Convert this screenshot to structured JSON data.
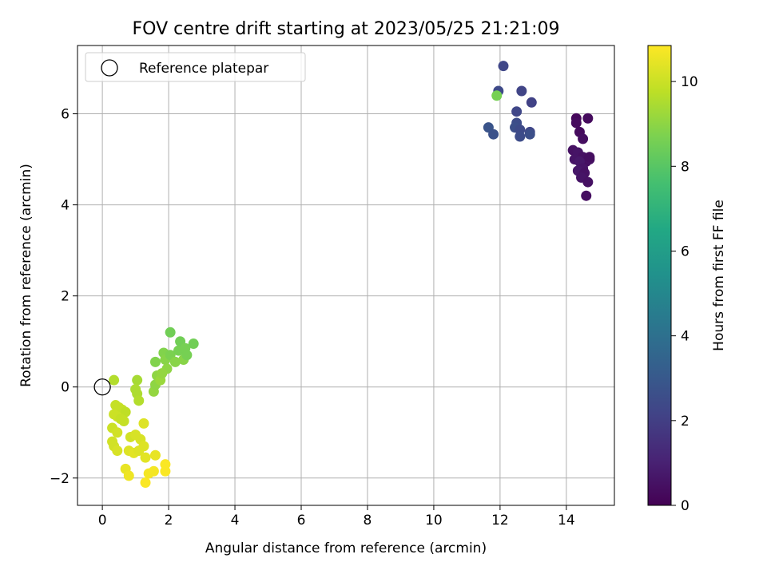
{
  "chart_data": {
    "type": "scatter",
    "title": "FOV centre drift starting at 2023/05/25 21:21:09",
    "xlabel": "Angular distance from reference (arcmin)",
    "ylabel": "Rotation from reference (arcmin)",
    "xlim": [
      -0.75,
      15.45
    ],
    "ylim": [
      -2.6,
      7.5
    ],
    "xticks": [
      0,
      2,
      4,
      6,
      8,
      10,
      12,
      14
    ],
    "yticks": [
      -2,
      0,
      2,
      4,
      6
    ],
    "xtick_labels": [
      "0",
      "2",
      "4",
      "6",
      "8",
      "10",
      "12",
      "14"
    ],
    "ytick_labels": [
      "−2",
      "0",
      "2",
      "4",
      "6"
    ],
    "grid": true,
    "legend": {
      "placement": "top-left",
      "entries": [
        "Reference platepar"
      ]
    },
    "reference_point": {
      "x": 0,
      "y": 0,
      "label": "Reference platepar"
    },
    "colorbar": {
      "label": "Hours from first FF file",
      "colormap": "viridis",
      "range": [
        0,
        10.85
      ],
      "ticks": [
        0,
        2,
        4,
        6,
        8,
        10
      ],
      "tick_labels": [
        "0",
        "2",
        "4",
        "6",
        "8",
        "10"
      ]
    },
    "points": [
      {
        "x": 14.3,
        "y": 5.9,
        "c": 0.2
      },
      {
        "x": 14.4,
        "y": 5.6,
        "c": 0.3
      },
      {
        "x": 14.5,
        "y": 5.45,
        "c": 0.4
      },
      {
        "x": 14.65,
        "y": 5.9,
        "c": 0.3
      },
      {
        "x": 14.2,
        "y": 5.2,
        "c": 0.5
      },
      {
        "x": 14.35,
        "y": 5.15,
        "c": 0.6
      },
      {
        "x": 14.5,
        "y": 5.05,
        "c": 0.5
      },
      {
        "x": 14.6,
        "y": 4.95,
        "c": 0.4
      },
      {
        "x": 14.25,
        "y": 5.0,
        "c": 0.6
      },
      {
        "x": 14.4,
        "y": 4.95,
        "c": 0.7
      },
      {
        "x": 14.7,
        "y": 5.0,
        "c": 0.5
      },
      {
        "x": 14.5,
        "y": 4.8,
        "c": 0.6
      },
      {
        "x": 14.35,
        "y": 4.75,
        "c": 0.7
      },
      {
        "x": 14.55,
        "y": 4.7,
        "c": 0.5
      },
      {
        "x": 14.45,
        "y": 4.6,
        "c": 0.6
      },
      {
        "x": 14.65,
        "y": 4.5,
        "c": 0.5
      },
      {
        "x": 14.6,
        "y": 4.2,
        "c": 0.4
      },
      {
        "x": 14.7,
        "y": 5.05,
        "c": 0.4
      },
      {
        "x": 14.3,
        "y": 5.8,
        "c": 0.3
      },
      {
        "x": 12.1,
        "y": 7.05,
        "c": 2.3
      },
      {
        "x": 11.95,
        "y": 6.5,
        "c": 2.4
      },
      {
        "x": 12.65,
        "y": 6.5,
        "c": 2.2
      },
      {
        "x": 12.95,
        "y": 6.25,
        "c": 2.1
      },
      {
        "x": 12.5,
        "y": 6.05,
        "c": 2.3
      },
      {
        "x": 12.5,
        "y": 5.8,
        "c": 2.5
      },
      {
        "x": 12.45,
        "y": 5.7,
        "c": 2.6
      },
      {
        "x": 12.6,
        "y": 5.65,
        "c": 2.4
      },
      {
        "x": 12.9,
        "y": 5.6,
        "c": 2.3
      },
      {
        "x": 11.65,
        "y": 5.7,
        "c": 2.8
      },
      {
        "x": 11.8,
        "y": 5.55,
        "c": 2.7
      },
      {
        "x": 12.6,
        "y": 5.5,
        "c": 2.5
      },
      {
        "x": 12.9,
        "y": 5.55,
        "c": 2.6
      },
      {
        "x": 11.9,
        "y": 6.4,
        "c": 8.6
      },
      {
        "x": 0.35,
        "y": 0.15,
        "c": 9.6
      },
      {
        "x": 1.05,
        "y": 0.15,
        "c": 9.4
      },
      {
        "x": 1.0,
        "y": -0.05,
        "c": 9.5
      },
      {
        "x": 1.05,
        "y": -0.15,
        "c": 9.5
      },
      {
        "x": 1.1,
        "y": -0.3,
        "c": 9.6
      },
      {
        "x": 1.55,
        "y": -0.1,
        "c": 9.1
      },
      {
        "x": 1.6,
        "y": 0.05,
        "c": 9.0
      },
      {
        "x": 1.65,
        "y": 0.25,
        "c": 9.0
      },
      {
        "x": 1.75,
        "y": 0.15,
        "c": 9.2
      },
      {
        "x": 1.6,
        "y": 0.55,
        "c": 8.8
      },
      {
        "x": 1.85,
        "y": 0.75,
        "c": 8.8
      },
      {
        "x": 1.9,
        "y": 0.6,
        "c": 8.9
      },
      {
        "x": 2.05,
        "y": 0.7,
        "c": 8.7
      },
      {
        "x": 2.2,
        "y": 0.55,
        "c": 8.9
      },
      {
        "x": 2.3,
        "y": 0.8,
        "c": 8.6
      },
      {
        "x": 2.35,
        "y": 1.0,
        "c": 8.5
      },
      {
        "x": 2.5,
        "y": 0.85,
        "c": 8.6
      },
      {
        "x": 2.45,
        "y": 0.6,
        "c": 8.9
      },
      {
        "x": 2.55,
        "y": 0.7,
        "c": 8.6
      },
      {
        "x": 2.75,
        "y": 0.95,
        "c": 8.5
      },
      {
        "x": 2.05,
        "y": 1.2,
        "c": 8.5
      },
      {
        "x": 1.95,
        "y": 0.4,
        "c": 9.0
      },
      {
        "x": 1.8,
        "y": 0.3,
        "c": 9.1
      },
      {
        "x": 0.4,
        "y": -0.4,
        "c": 9.9
      },
      {
        "x": 0.5,
        "y": -0.45,
        "c": 9.9
      },
      {
        "x": 0.6,
        "y": -0.5,
        "c": 9.9
      },
      {
        "x": 0.7,
        "y": -0.55,
        "c": 9.8
      },
      {
        "x": 0.35,
        "y": -0.6,
        "c": 10.0
      },
      {
        "x": 0.45,
        "y": -0.65,
        "c": 10.0
      },
      {
        "x": 0.55,
        "y": -0.7,
        "c": 9.9
      },
      {
        "x": 0.65,
        "y": -0.75,
        "c": 9.9
      },
      {
        "x": 0.3,
        "y": -0.9,
        "c": 10.0
      },
      {
        "x": 0.45,
        "y": -1.0,
        "c": 10.1
      },
      {
        "x": 0.3,
        "y": -1.2,
        "c": 10.1
      },
      {
        "x": 0.35,
        "y": -1.3,
        "c": 10.1
      },
      {
        "x": 0.45,
        "y": -1.4,
        "c": 10.2
      },
      {
        "x": 0.85,
        "y": -1.1,
        "c": 10.1
      },
      {
        "x": 1.0,
        "y": -1.05,
        "c": 10.2
      },
      {
        "x": 1.15,
        "y": -1.15,
        "c": 10.2
      },
      {
        "x": 1.25,
        "y": -1.3,
        "c": 10.3
      },
      {
        "x": 0.8,
        "y": -1.4,
        "c": 10.3
      },
      {
        "x": 0.95,
        "y": -1.45,
        "c": 10.4
      },
      {
        "x": 1.1,
        "y": -1.4,
        "c": 10.3
      },
      {
        "x": 1.3,
        "y": -1.55,
        "c": 10.4
      },
      {
        "x": 1.6,
        "y": -1.5,
        "c": 10.5
      },
      {
        "x": 0.7,
        "y": -1.8,
        "c": 10.5
      },
      {
        "x": 0.8,
        "y": -1.95,
        "c": 10.6
      },
      {
        "x": 1.25,
        "y": -0.8,
        "c": 10.3
      },
      {
        "x": 1.3,
        "y": -2.1,
        "c": 10.8
      },
      {
        "x": 1.4,
        "y": -1.9,
        "c": 10.7
      },
      {
        "x": 1.55,
        "y": -1.85,
        "c": 10.7
      },
      {
        "x": 1.9,
        "y": -1.7,
        "c": 10.8
      },
      {
        "x": 1.9,
        "y": -1.85,
        "c": 10.8
      }
    ]
  }
}
